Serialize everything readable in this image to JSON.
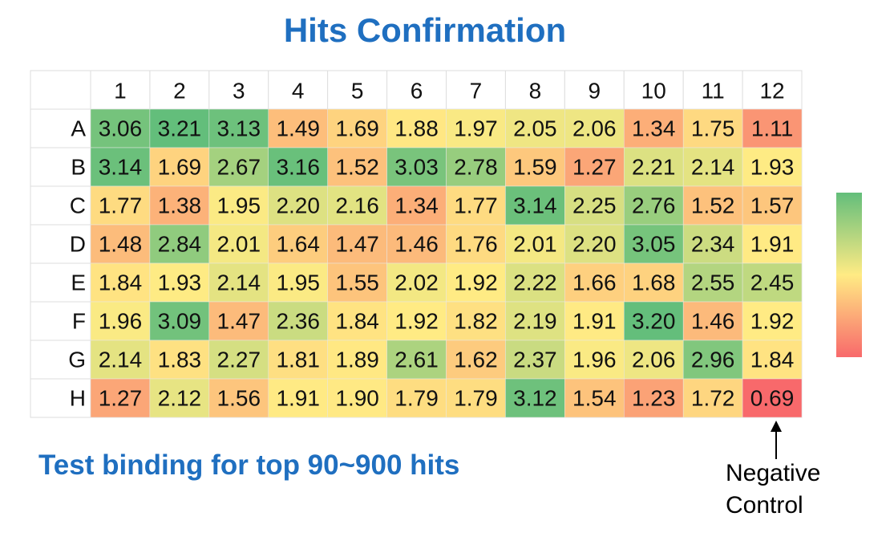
{
  "chart_data": {
    "type": "heatmap",
    "title": "Hits Confirmation",
    "subtitle": "Test binding for top 90~900 hits",
    "annotation": "Negative Control",
    "x": [
      "1",
      "2",
      "3",
      "4",
      "5",
      "6",
      "7",
      "8",
      "9",
      "10",
      "11",
      "12"
    ],
    "y": [
      "A",
      "B",
      "C",
      "D",
      "E",
      "F",
      "G",
      "H"
    ],
    "values": [
      [
        3.06,
        3.21,
        3.13,
        1.49,
        1.69,
        1.88,
        1.97,
        2.05,
        2.06,
        1.34,
        1.75,
        1.11
      ],
      [
        3.14,
        1.69,
        2.67,
        3.16,
        1.52,
        3.03,
        2.78,
        1.59,
        1.27,
        2.21,
        2.14,
        1.93
      ],
      [
        1.77,
        1.38,
        1.95,
        2.2,
        2.16,
        1.34,
        1.77,
        3.14,
        2.25,
        2.76,
        1.52,
        1.57
      ],
      [
        1.48,
        2.84,
        2.01,
        1.64,
        1.47,
        1.46,
        1.76,
        2.01,
        2.2,
        3.05,
        2.34,
        1.91
      ],
      [
        1.84,
        1.93,
        2.14,
        1.95,
        1.55,
        2.02,
        1.92,
        2.22,
        1.66,
        1.68,
        2.55,
        2.45
      ],
      [
        1.96,
        3.09,
        1.47,
        2.36,
        1.84,
        1.92,
        1.82,
        2.19,
        1.91,
        3.2,
        1.46,
        1.92
      ],
      [
        2.14,
        1.83,
        2.27,
        1.81,
        1.89,
        2.61,
        1.62,
        2.37,
        1.96,
        2.06,
        2.96,
        1.84
      ],
      [
        1.27,
        2.12,
        1.56,
        1.91,
        1.9,
        1.79,
        1.79,
        3.12,
        1.54,
        1.23,
        1.72,
        0.69
      ]
    ],
    "value_labels": [
      [
        "3.06",
        "3.21",
        "3.13",
        "1.49",
        "1.69",
        "1.88",
        "1.97",
        "2.05",
        "2.06",
        "1.34",
        "1.75",
        "1.11"
      ],
      [
        "3.14",
        "1.69",
        "2.67",
        "3.16",
        "1.52",
        "3.03",
        "2.78",
        "1.59",
        "1.27",
        "2.21",
        "2.14",
        "1.93"
      ],
      [
        "1.77",
        "1.38",
        "1.95",
        "2.20",
        "2.16",
        "1.34",
        "1.77",
        "3.14",
        "2.25",
        "2.76",
        "1.52",
        "1.57"
      ],
      [
        "1.48",
        "2.84",
        "2.01",
        "1.64",
        "1.47",
        "1.46",
        "1.76",
        "2.01",
        "2.20",
        "3.05",
        "2.34",
        "1.91"
      ],
      [
        "1.84",
        "1.93",
        "2.14",
        "1.95",
        "1.55",
        "2.02",
        "1.92",
        "2.22",
        "1.66",
        "1.68",
        "2.55",
        "2.45"
      ],
      [
        "1.96",
        "3.09",
        "1.47",
        "2.36",
        "1.84",
        "1.92",
        "1.82",
        "2.19",
        "1.91",
        "3.20",
        "1.46",
        "1.92"
      ],
      [
        "2.14",
        "1.83",
        "2.27",
        "1.81",
        "1.89",
        "2.61",
        "1.62",
        "2.37",
        "1.96",
        "2.06",
        "2.96",
        "1.84"
      ],
      [
        "1.27",
        "2.12",
        "1.56",
        "1.91",
        "1.90",
        "1.79",
        "1.79",
        "3.12",
        "1.54",
        "1.23",
        "1.72",
        "0.69"
      ]
    ],
    "colors": [
      "#f8696b",
      "#ffeb84",
      "#63be7b"
    ]
  }
}
